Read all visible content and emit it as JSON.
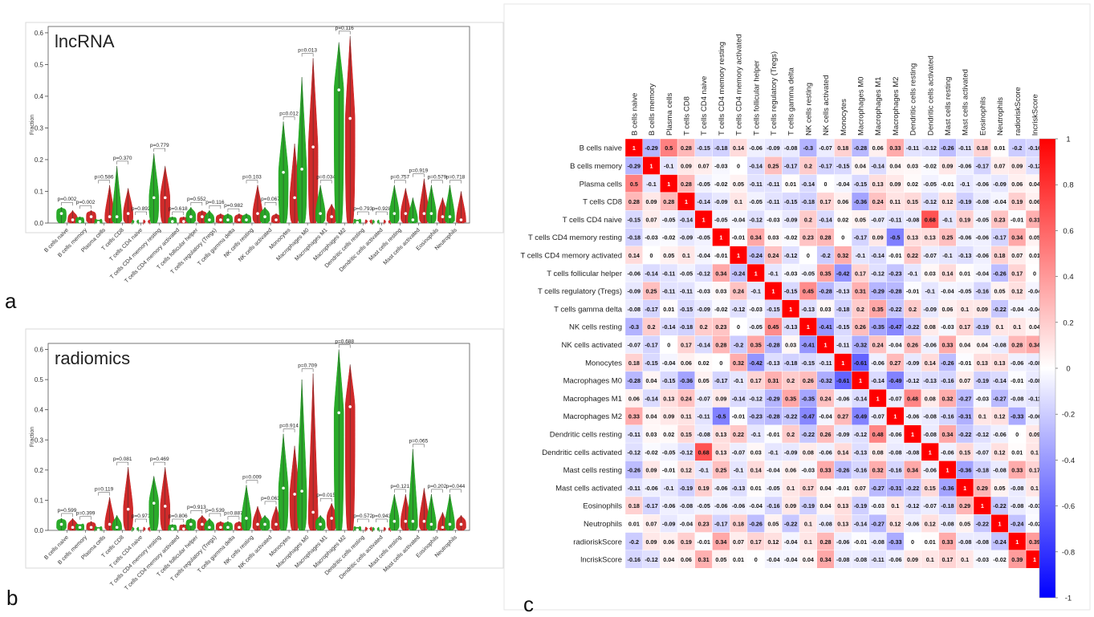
{
  "panels": [
    {
      "letter": "a",
      "title": "lncRNA",
      "ylabel": "Fraction",
      "ylim": [
        0,
        0.62
      ],
      "yticks": [
        "0.0",
        "0.1",
        "0.2",
        "0.3",
        "0.4",
        "0.5",
        "0.6"
      ],
      "categories": [
        "B cells naive",
        "B cells memory",
        "Plasma cells",
        "T cells CD8",
        "T cells CD4 naive",
        "T cells CD4 memory resting",
        "T cells CD4 memory activated",
        "T cells follicular helper",
        "T cells regulatory (Tregs)",
        "T cells gamma delta",
        "NK cells resting",
        "NK cells activated",
        "Monocytes",
        "Macrophages M0",
        "Macrophages M1",
        "Macrophages M2",
        "Dendritic cells resting",
        "Dendritic cells activated",
        "Mast cells resting",
        "Mast cells activated",
        "Eosinophils",
        "Neutrophils"
      ],
      "pvalues": [
        "p=0.002",
        "p=0.002",
        "p=0.586",
        "p=0.370",
        "p=0.892",
        "p=0.779",
        "p=0.618",
        "p=0.552",
        "p=0.116",
        "p=0.982",
        "p=0.103",
        "p=0.067",
        "p=0.012",
        "p=0.013",
        "p=0.034",
        "p=0.116",
        "p=0.793",
        "p=0.928",
        "p=0.757",
        "p=0.919",
        "p=0.579",
        "p=0.718"
      ],
      "series": [
        {
          "name": "low",
          "color": "#1fa51f",
          "max": [
            0.05,
            0.02,
            0.01,
            0.18,
            0.003,
            0.22,
            0.02,
            0.05,
            0.04,
            0.03,
            0.03,
            0.05,
            0.32,
            0.46,
            0.12,
            0.57,
            0.01,
            0.002,
            0.12,
            0.08,
            0.12,
            0.12
          ],
          "median": [
            0.03,
            0.005,
            0.002,
            0.02,
            0.001,
            0.08,
            0.005,
            0.02,
            0.01,
            0.01,
            0.01,
            0.02,
            0.16,
            0.17,
            0.03,
            0.42,
            0.002,
            0.001,
            0.03,
            0.01,
            0.03,
            0.02
          ]
        },
        {
          "name": "high",
          "color": "#cc1f1f",
          "max": [
            0.04,
            0.04,
            0.12,
            0.11,
            0.003,
            0.18,
            0.02,
            0.04,
            0.03,
            0.03,
            0.12,
            0.03,
            0.25,
            0.52,
            0.06,
            0.59,
            0.005,
            0.002,
            0.11,
            0.14,
            0.08,
            0.1
          ],
          "median": [
            0.01,
            0.02,
            0.02,
            0.03,
            0.001,
            0.08,
            0.005,
            0.02,
            0.01,
            0.01,
            0.03,
            0.01,
            0.08,
            0.24,
            0.02,
            0.33,
            0.001,
            0.001,
            0.03,
            0.03,
            0.02,
            0.01
          ]
        }
      ]
    },
    {
      "letter": "b",
      "title": "radiomics",
      "ylabel": "Fraction",
      "ylim": [
        0,
        0.62
      ],
      "yticks": [
        "0.0",
        "0.1",
        "0.2",
        "0.3",
        "0.4",
        "0.5",
        "0.6"
      ],
      "categories": [
        "B cells naive",
        "B cells memory",
        "Plasma cells",
        "T cells CD8",
        "T cells CD4 naive",
        "T cells CD4 memory resting",
        "T cells CD4 memory activated",
        "T cells follicular helper",
        "T cells regulatory (Tregs)",
        "T cells gamma delta",
        "NK cells resting",
        "NK cells activated",
        "Monocytes",
        "Macrophages M0",
        "Macrophages M1",
        "Macrophages M2",
        "Dendritic cells resting",
        "Dendritic cells activated",
        "Mast cells resting",
        "Mast cells activated",
        "Eosinophils",
        "Neutrophils"
      ],
      "pvalues": [
        "p=0.599",
        "p=0.399",
        "p=0.119",
        "p=0.081",
        "p=0.971",
        "p=0.469",
        "p=0.806",
        "p=0.913",
        "p=0.539",
        "p=0.887",
        "p=0.009",
        "p=0.063",
        "p=0.914",
        "p=0.709",
        "p=0.015",
        "p=0.688",
        "p=0.572",
        "p=0.943",
        "p=0.121",
        "p=0.065",
        "p=0.202",
        "p=0.044"
      ],
      "series": [
        {
          "name": "low",
          "color": "#1fa51f",
          "max": [
            0.04,
            0.02,
            0.01,
            0.05,
            0.003,
            0.18,
            0.02,
            0.04,
            0.04,
            0.03,
            0.15,
            0.05,
            0.32,
            0.5,
            0.05,
            0.6,
            0.01,
            0.002,
            0.12,
            0.27,
            0.12,
            0.12
          ],
          "median": [
            0.02,
            0.01,
            0.002,
            0.01,
            0.001,
            0.09,
            0.005,
            0.02,
            0.01,
            0.01,
            0.04,
            0.02,
            0.14,
            0.13,
            0.02,
            0.39,
            0.002,
            0.001,
            0.03,
            0.03,
            0.02,
            0.02
          ]
        },
        {
          "name": "high",
          "color": "#cc1f1f",
          "max": [
            0.04,
            0.03,
            0.11,
            0.21,
            0.003,
            0.21,
            0.02,
            0.05,
            0.03,
            0.03,
            0.08,
            0.08,
            0.28,
            0.52,
            0.09,
            0.55,
            0.005,
            0.002,
            0.12,
            0.14,
            0.06,
            0.05
          ],
          "median": [
            0.01,
            0.01,
            0.02,
            0.07,
            0.001,
            0.08,
            0.005,
            0.02,
            0.01,
            0.01,
            0.02,
            0.02,
            0.12,
            0.06,
            0.04,
            0.41,
            0.001,
            0.001,
            0.03,
            0.03,
            0.01,
            0.02
          ]
        }
      ]
    }
  ],
  "chart_data": [
    {
      "type": "violin",
      "title": "lncRNA",
      "ylabel": "Fraction",
      "ylim": [
        0,
        0.6
      ],
      "ref": "panels.0"
    },
    {
      "type": "violin",
      "title": "radiomics",
      "ylabel": "Fraction",
      "ylim": [
        0,
        0.6
      ],
      "ref": "panels.1"
    },
    {
      "type": "heatmap",
      "letter": "c",
      "labels": [
        "B cells naive",
        "B cells memory",
        "Plasma cells",
        "T cells CD8",
        "T cells CD4 naive",
        "T cells CD4 memory resting",
        "T cells CD4 memory activated",
        "T cells follicular helper",
        "T cells regulatory (Tregs)",
        "T cells gamma delta",
        "NK cells resting",
        "NK cells activated",
        "Monocytes",
        "Macrophages M0",
        "Macrophages M1",
        "Macrophages M2",
        "Dendritic cells resting",
        "Dendritic cells activated",
        "Mast cells resting",
        "Mast cells activated",
        "Eosinophils",
        "Neutrophils",
        "radioriskScore",
        "lncriskScore"
      ],
      "colorbar": {
        "min": -1,
        "max": 1,
        "ticks": [
          "1",
          "0.8",
          "0.6",
          "0.4",
          "0.2",
          "0",
          "-0.2",
          "-0.4",
          "-0.6",
          "-0.8",
          "-1"
        ],
        "low": "#0000ff",
        "mid": "#ffffff",
        "high": "#ff0000"
      },
      "matrix": [
        [
          1,
          -0.29,
          0.5,
          0.28,
          -0.15,
          -0.18,
          0.14,
          -0.06,
          -0.09,
          -0.08,
          -0.3,
          -0.07,
          0.18,
          -0.28,
          0.06,
          0.33,
          -0.11,
          -0.12,
          -0.26,
          -0.11,
          0.18,
          0.01,
          -0.2,
          -0.16
        ],
        [
          -0.29,
          1,
          -0.1,
          0.09,
          0.07,
          -0.03,
          0,
          -0.14,
          0.25,
          -0.17,
          0.2,
          -0.17,
          -0.15,
          0.04,
          -0.14,
          0.04,
          0.03,
          -0.02,
          0.09,
          -0.06,
          -0.17,
          0.07,
          0.09,
          -0.12
        ],
        [
          0.5,
          -0.1,
          1,
          0.28,
          -0.05,
          -0.02,
          0.05,
          -0.11,
          -0.11,
          0.01,
          -0.14,
          0,
          -0.04,
          -0.15,
          0.13,
          0.09,
          0.02,
          -0.05,
          -0.01,
          -0.1,
          -0.06,
          -0.09,
          0.06,
          0.04
        ],
        [
          0.28,
          0.09,
          0.28,
          1,
          -0.14,
          -0.09,
          0.1,
          -0.05,
          -0.11,
          -0.15,
          -0.18,
          0.17,
          0.06,
          -0.36,
          0.24,
          0.11,
          0.15,
          -0.12,
          0.12,
          -0.19,
          -0.08,
          -0.04,
          0.19,
          0.06
        ],
        [
          -0.15,
          0.07,
          -0.05,
          -0.14,
          1,
          -0.05,
          -0.04,
          -0.12,
          -0.03,
          -0.09,
          0.2,
          -0.14,
          0.02,
          0.05,
          -0.07,
          -0.11,
          -0.08,
          0.68,
          -0.1,
          0.19,
          -0.05,
          0.23,
          -0.01,
          0.31
        ],
        [
          -0.18,
          -0.03,
          -0.02,
          -0.09,
          -0.05,
          1,
          -0.01,
          0.34,
          0.03,
          -0.02,
          0.23,
          0.28,
          0,
          -0.17,
          0.09,
          -0.5,
          0.13,
          0.13,
          0.25,
          -0.06,
          -0.06,
          -0.17,
          0.34,
          0.05
        ],
        [
          0.14,
          0,
          0.05,
          0.1,
          -0.04,
          -0.01,
          1,
          -0.24,
          0.24,
          -0.12,
          0,
          -0.2,
          0.32,
          -0.1,
          -0.14,
          -0.01,
          0.22,
          -0.07,
          -0.1,
          -0.13,
          -0.06,
          0.18,
          0.07,
          0.01
        ],
        [
          -0.06,
          -0.14,
          -0.11,
          -0.05,
          -0.12,
          0.34,
          -0.24,
          1,
          -0.1,
          -0.03,
          -0.05,
          0.35,
          -0.42,
          0.17,
          -0.12,
          -0.23,
          -0.1,
          0.03,
          0.14,
          0.01,
          -0.04,
          -0.26,
          0.17,
          0
        ],
        [
          -0.09,
          0.25,
          -0.11,
          -0.11,
          -0.03,
          0.03,
          0.24,
          -0.1,
          1,
          -0.15,
          0.45,
          -0.28,
          -0.13,
          0.31,
          -0.29,
          -0.28,
          -0.01,
          -0.1,
          -0.04,
          -0.05,
          -0.16,
          0.05,
          0.12,
          -0.04
        ],
        [
          -0.08,
          -0.17,
          0.01,
          -0.15,
          -0.09,
          -0.02,
          -0.12,
          -0.03,
          -0.15,
          1,
          -0.13,
          0.03,
          -0.18,
          0.2,
          0.35,
          -0.22,
          0.2,
          -0.09,
          0.06,
          0.1,
          0.09,
          -0.22,
          -0.04,
          -0.04
        ],
        [
          -0.3,
          0.2,
          -0.14,
          -0.18,
          0.2,
          0.23,
          0,
          -0.05,
          0.45,
          -0.13,
          1,
          -0.41,
          -0.15,
          0.26,
          -0.35,
          -0.47,
          -0.22,
          0.08,
          -0.03,
          0.17,
          -0.19,
          0.1,
          0.1,
          0.04
        ],
        [
          -0.07,
          -0.17,
          0,
          0.17,
          -0.14,
          0.28,
          -0.2,
          0.35,
          -0.28,
          0.03,
          -0.41,
          1,
          -0.11,
          -0.32,
          0.24,
          -0.04,
          0.26,
          -0.06,
          0.33,
          0.04,
          0.04,
          -0.08,
          0.28,
          0.34
        ],
        [
          0.18,
          -0.15,
          -0.04,
          0.06,
          0.02,
          0,
          0.32,
          -0.42,
          -0.13,
          -0.18,
          -0.15,
          -0.11,
          1,
          -0.61,
          -0.06,
          0.27,
          -0.09,
          0.14,
          -0.26,
          -0.01,
          0.13,
          0.13,
          -0.06,
          -0.08
        ],
        [
          -0.28,
          0.04,
          -0.15,
          -0.36,
          0.05,
          -0.17,
          -0.1,
          0.17,
          0.31,
          0.2,
          0.26,
          -0.32,
          -0.61,
          1,
          -0.14,
          -0.49,
          -0.12,
          -0.13,
          -0.16,
          0.07,
          -0.19,
          -0.14,
          -0.01,
          -0.08
        ],
        [
          0.06,
          -0.14,
          0.13,
          0.24,
          -0.07,
          0.09,
          -0.14,
          -0.12,
          -0.29,
          0.35,
          -0.35,
          0.24,
          -0.06,
          -0.14,
          1,
          -0.07,
          0.48,
          0.08,
          0.32,
          -0.27,
          -0.03,
          -0.27,
          -0.08,
          -0.11
        ],
        [
          0.33,
          0.04,
          0.09,
          0.11,
          -0.11,
          -0.5,
          -0.01,
          -0.23,
          -0.28,
          -0.22,
          -0.47,
          -0.04,
          0.27,
          -0.49,
          -0.07,
          1,
          -0.06,
          -0.08,
          -0.16,
          -0.31,
          0.1,
          0.12,
          -0.33,
          -0.06
        ],
        [
          -0.11,
          0.03,
          0.02,
          0.15,
          -0.08,
          0.13,
          0.22,
          -0.1,
          -0.01,
          0.2,
          -0.22,
          0.26,
          -0.09,
          -0.12,
          0.48,
          -0.06,
          1,
          -0.08,
          0.34,
          -0.22,
          -0.12,
          -0.06,
          0,
          0.09
        ],
        [
          -0.12,
          -0.02,
          -0.05,
          -0.12,
          0.68,
          0.13,
          -0.07,
          0.03,
          -0.1,
          -0.09,
          0.08,
          -0.06,
          0.14,
          -0.13,
          0.08,
          -0.08,
          -0.08,
          1,
          -0.06,
          0.15,
          -0.07,
          0.12,
          0.01,
          0.1
        ],
        [
          -0.26,
          0.09,
          -0.01,
          0.12,
          -0.1,
          0.25,
          -0.1,
          0.14,
          -0.04,
          0.06,
          -0.03,
          0.33,
          -0.26,
          -0.16,
          0.32,
          -0.16,
          0.34,
          -0.06,
          1,
          -0.36,
          -0.18,
          -0.08,
          0.33,
          0.17
        ],
        [
          -0.11,
          -0.06,
          -0.1,
          -0.19,
          0.19,
          -0.06,
          -0.13,
          0.01,
          -0.05,
          0.1,
          0.17,
          0.04,
          -0.01,
          0.07,
          -0.27,
          -0.31,
          -0.22,
          0.15,
          -0.36,
          1,
          0.29,
          0.05,
          -0.08,
          0.1
        ],
        [
          0.18,
          -0.17,
          -0.06,
          -0.08,
          -0.05,
          -0.06,
          -0.06,
          -0.04,
          -0.16,
          0.09,
          -0.19,
          0.04,
          0.13,
          -0.19,
          -0.03,
          0.1,
          -0.12,
          -0.07,
          -0.18,
          0.29,
          1,
          -0.22,
          -0.08,
          -0.03
        ],
        [
          0.01,
          0.07,
          -0.09,
          -0.04,
          0.23,
          -0.17,
          0.18,
          -0.26,
          0.05,
          -0.22,
          0.1,
          -0.08,
          0.13,
          -0.14,
          -0.27,
          0.12,
          -0.06,
          0.12,
          -0.08,
          0.05,
          -0.22,
          1,
          -0.24,
          -0.02
        ],
        [
          -0.2,
          0.09,
          0.06,
          0.19,
          -0.01,
          0.34,
          0.07,
          0.17,
          0.12,
          -0.04,
          0.1,
          0.28,
          -0.06,
          -0.01,
          -0.08,
          -0.33,
          0,
          0.01,
          0.33,
          -0.08,
          -0.08,
          -0.24,
          1,
          0.39
        ],
        [
          -0.16,
          -0.12,
          0.04,
          0.06,
          0.31,
          0.05,
          0.01,
          0,
          -0.04,
          -0.04,
          0.04,
          0.34,
          -0.08,
          -0.08,
          -0.11,
          -0.06,
          0.09,
          0.1,
          0.17,
          0.1,
          -0.03,
          -0.02,
          0.39,
          1
        ]
      ]
    }
  ]
}
